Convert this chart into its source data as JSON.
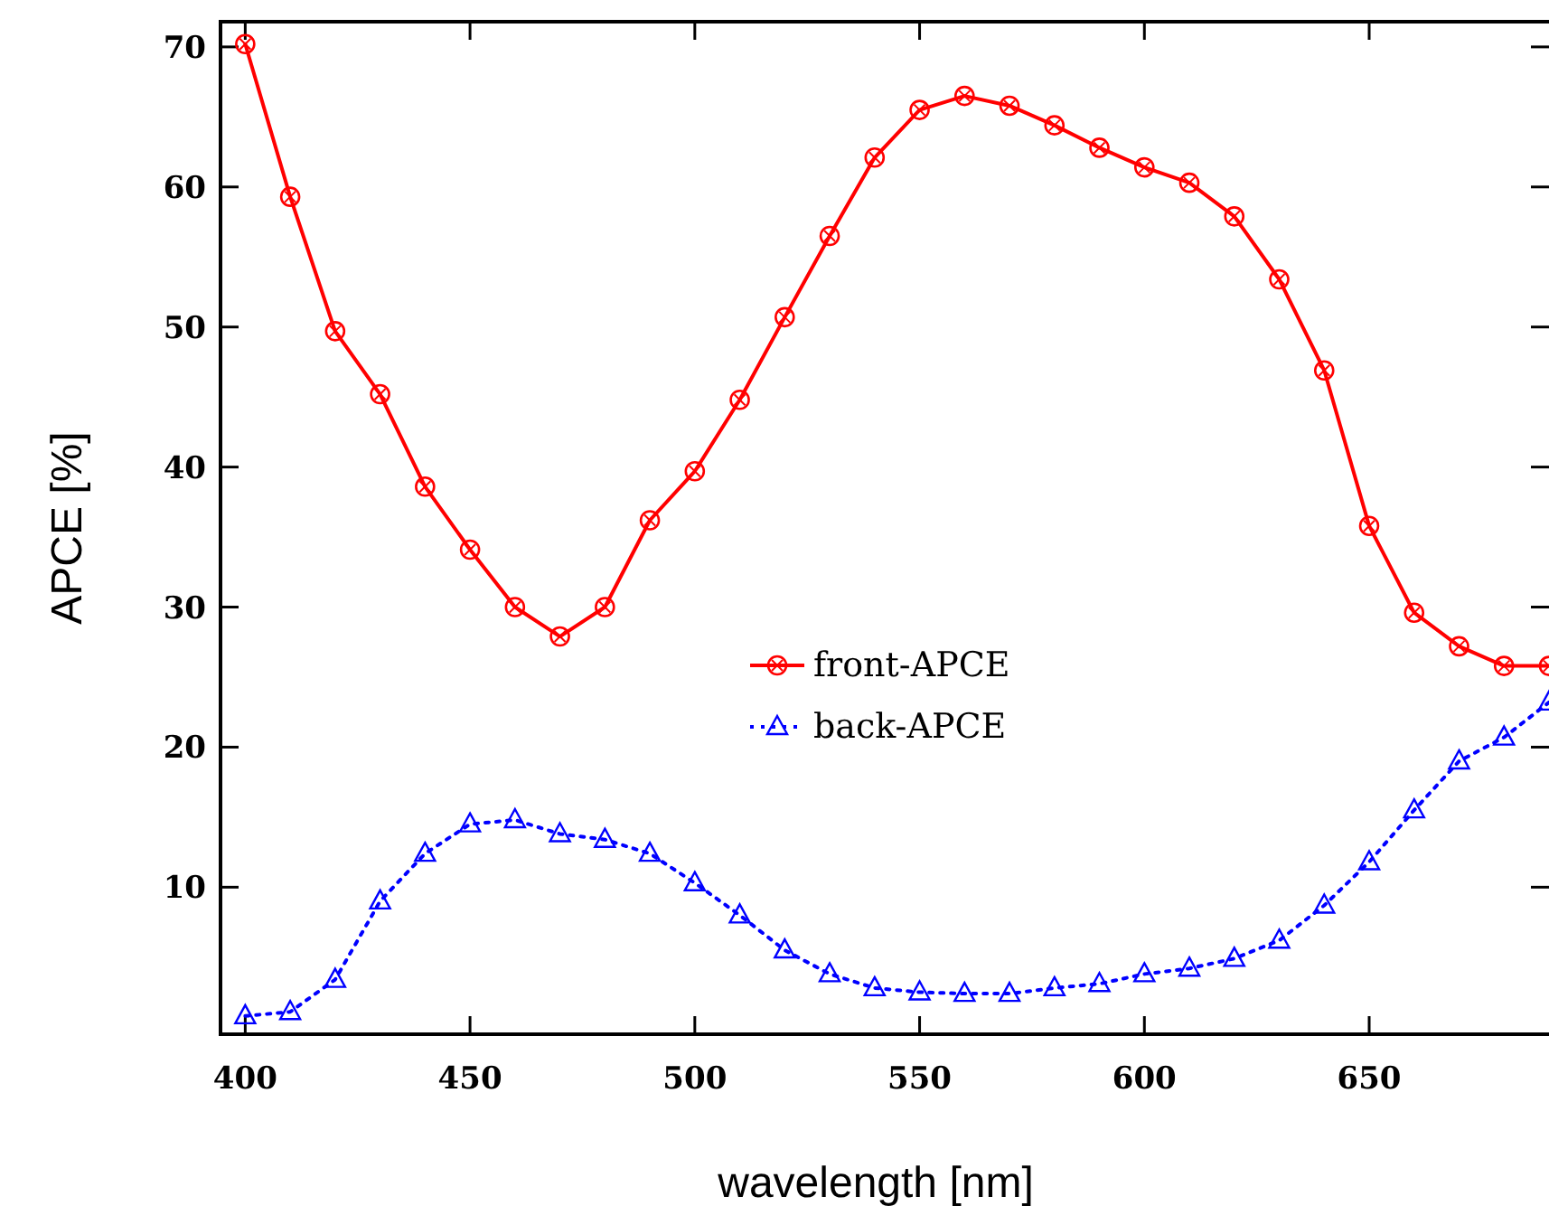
{
  "chart_data": {
    "type": "line",
    "xlabel": "wavelength [nm]",
    "ylabel": "APCE [%]",
    "x": [
      400,
      410,
      420,
      430,
      440,
      450,
      460,
      470,
      480,
      490,
      500,
      510,
      520,
      530,
      540,
      550,
      560,
      570,
      580,
      590,
      600,
      610,
      620,
      630,
      640,
      650,
      660,
      670,
      680,
      690
    ],
    "xlim": [
      394.5,
      690
    ],
    "ylim": [
      -0.5,
      71.8
    ],
    "xticks": [
      400,
      450,
      500,
      550,
      600,
      650
    ],
    "yticks": [
      10,
      20,
      30,
      40,
      50,
      60,
      70
    ],
    "grid": false,
    "legend": "center",
    "series": [
      {
        "name": "front-APCE",
        "color": "#ff0000",
        "marker": "circle",
        "line_style": "solid",
        "values": [
          70.2,
          59.3,
          49.7,
          45.2,
          38.6,
          34.1,
          30,
          27.9,
          30,
          36.2,
          39.7,
          44.8,
          50.7,
          56.5,
          62.1,
          65.5,
          66.5,
          65.8,
          64.4,
          62.8,
          61.4,
          60.3,
          57.9,
          53.4,
          46.9,
          35.8,
          29.6,
          27.2,
          25.8,
          25.8
        ]
      },
      {
        "name": "back-APCE",
        "color": "#0000ff",
        "marker": "triangle",
        "line_style": "dotted",
        "values": [
          0.8,
          1.1,
          3.4,
          9,
          12.4,
          14.5,
          14.8,
          13.8,
          13.4,
          12.4,
          10.3,
          8,
          5.5,
          3.8,
          2.8,
          2.5,
          2.4,
          2.4,
          2.8,
          3.1,
          3.8,
          4.2,
          4.9,
          6.2,
          8.7,
          11.8,
          15.5,
          19,
          20.7,
          23.2
        ]
      }
    ]
  }
}
